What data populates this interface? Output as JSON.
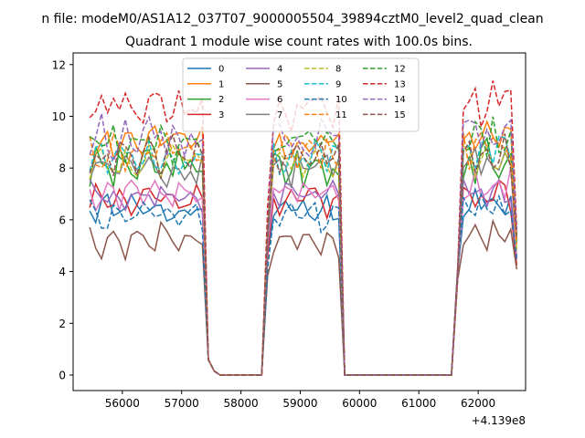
{
  "figure": {
    "suptitle": "n file: modeM0/AS1A12_037T07_9000005504_39894cztM0_level2_quad_clean"
  },
  "chart_data": {
    "type": "line",
    "title": "Quadrant 1 module wise count rates with 100.0s bins.",
    "xlabel": "",
    "ylabel": "",
    "x_offset_label": "+4.139e8",
    "xlim": [
      55170,
      62800
    ],
    "ylim": [
      -0.6,
      12.45
    ],
    "xticks": [
      56000,
      57000,
      58000,
      59000,
      60000,
      61000,
      62000
    ],
    "yticks": [
      0,
      2,
      4,
      6,
      8,
      10,
      12
    ],
    "legend_position": "top-center",
    "legend_columns": 4,
    "x_segments": [
      {
        "start": 55450,
        "end": 57350,
        "step": 100
      },
      {
        "start": 57450,
        "end": 58350,
        "step": 100
      },
      {
        "start": 58450,
        "end": 59650,
        "step": 100
      },
      {
        "start": 59750,
        "end": 61550,
        "step": 100
      },
      {
        "start": 61650,
        "end": 62650,
        "step": 100
      }
    ],
    "off_value": 0,
    "transition_points": {
      "57450": 0.6,
      "57550": 0.15,
      "57650": 0.0,
      "58350": 0.0,
      "58450": 3.5,
      "59650": 6.0,
      "59750": 0.0,
      "61550": 0.0,
      "61650": 3.5,
      "62650": 3.5
    },
    "series": [
      {
        "name": "0",
        "color": "#1f77b4",
        "dash": false,
        "level": 6.4,
        "amp": 0.35,
        "seed": 1
      },
      {
        "name": "1",
        "color": "#ff7f0e",
        "dash": false,
        "level": 9.0,
        "amp": 0.45,
        "seed": 2
      },
      {
        "name": "2",
        "color": "#2ca02c",
        "dash": false,
        "level": 8.0,
        "amp": 0.7,
        "seed": 3
      },
      {
        "name": "3",
        "color": "#d62728",
        "dash": false,
        "level": 6.8,
        "amp": 0.4,
        "seed": 4
      },
      {
        "name": "4",
        "color": "#9467bd",
        "dash": false,
        "level": 6.9,
        "amp": 0.4,
        "seed": 5
      },
      {
        "name": "5",
        "color": "#8c564b",
        "dash": false,
        "level": 5.2,
        "amp": 0.35,
        "seed": 6
      },
      {
        "name": "6",
        "color": "#e377c2",
        "dash": false,
        "level": 7.1,
        "amp": 0.45,
        "seed": 7
      },
      {
        "name": "7",
        "color": "#7f7f7f",
        "dash": false,
        "level": 8.0,
        "amp": 0.55,
        "seed": 8
      },
      {
        "name": "8",
        "color": "#bcbd22",
        "dash": true,
        "level": 8.2,
        "amp": 0.5,
        "seed": 9
      },
      {
        "name": "9",
        "color": "#17becf",
        "dash": true,
        "level": 8.4,
        "amp": 0.5,
        "seed": 10
      },
      {
        "name": "10",
        "color": "#1f77b4",
        "dash": true,
        "level": 6.2,
        "amp": 0.35,
        "seed": 11
      },
      {
        "name": "11",
        "color": "#ff7f0e",
        "dash": true,
        "level": 8.6,
        "amp": 0.5,
        "seed": 12
      },
      {
        "name": "12",
        "color": "#2ca02c",
        "dash": true,
        "level": 9.0,
        "amp": 0.55,
        "seed": 13
      },
      {
        "name": "13",
        "color": "#d62728",
        "dash": true,
        "level": 10.3,
        "amp": 0.6,
        "seed": 14
      },
      {
        "name": "14",
        "color": "#9467bd",
        "dash": true,
        "level": 9.2,
        "amp": 0.55,
        "seed": 15
      },
      {
        "name": "15",
        "color": "#8c564b",
        "dash": true,
        "level": 8.4,
        "amp": 0.5,
        "seed": 16
      }
    ]
  }
}
